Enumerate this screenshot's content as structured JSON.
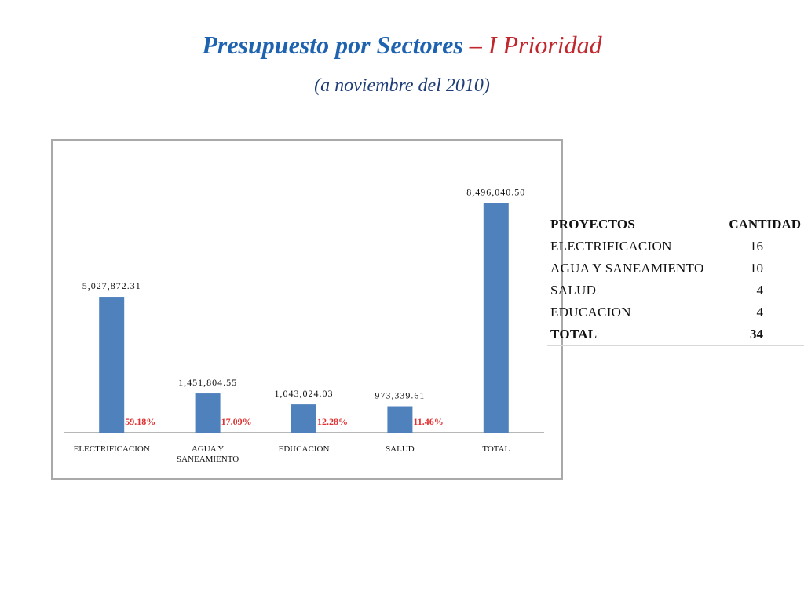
{
  "slide": {
    "title_main": "Presupuesto por Sectores",
    "title_dash": " – ",
    "title_rest": "I  Prioridad",
    "subtitle": "(a noviembre del 2010)"
  },
  "chart_data": {
    "type": "bar",
    "categories": [
      "ELECTRIFICACION",
      "AGUA Y\nSANEAMIENTO",
      "EDUCACION",
      "SALUD",
      "TOTAL"
    ],
    "values": [
      5027872.31,
      1451804.55,
      1043024.03,
      973339.61,
      8496040.5
    ],
    "value_labels": [
      "5,027,872.31",
      "1,451,804.55",
      "1,043,024.03",
      "973,339.61",
      "8,496,040.50"
    ],
    "percent_labels": [
      "59.18%",
      "17.09%",
      "12.28%",
      "11.46%",
      ""
    ],
    "ylim": [
      0,
      10000000
    ],
    "bar_color": "#4f81bd",
    "percent_color": "#e03030",
    "grid": false,
    "legend": "none"
  },
  "table": {
    "header": {
      "name": "PROYECTOS",
      "qty": "CANTIDAD"
    },
    "rows": [
      {
        "name": "ELECTRIFICACION",
        "qty": "16"
      },
      {
        "name": "AGUA Y SANEAMIENTO",
        "qty": "10"
      },
      {
        "name": "SALUD",
        "qty": "4"
      },
      {
        "name": "EDUCACION",
        "qty": "4"
      }
    ],
    "total": {
      "name": "TOTAL",
      "qty": "34"
    }
  }
}
